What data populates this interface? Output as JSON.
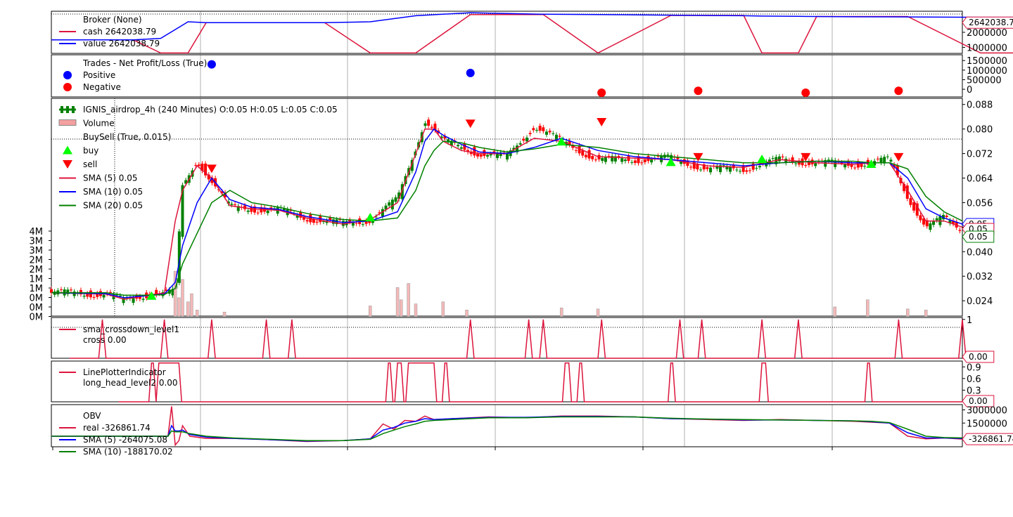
{
  "chart_data": [
    {
      "type": "line",
      "panel": "broker",
      "legend": [
        {
          "text": "Broker (None)",
          "color": ""
        },
        {
          "text": "cash 2642038.79",
          "color": "#dc143c"
        },
        {
          "text": "value 2642038.79",
          "color": "#0000ff"
        }
      ],
      "yticks": [
        "2000000",
        "1000000"
      ],
      "last_value": "2642038.79",
      "ylim": [
        600000,
        3400000
      ],
      "x": [
        0,
        45,
        60,
        75,
        85,
        100,
        120,
        140,
        150,
        175,
        200,
        230,
        270,
        300,
        340,
        380,
        390,
        410,
        420,
        440,
        470,
        510,
        540,
        580,
        620,
        640,
        660,
        700,
        740,
        790,
        830,
        870,
        880,
        900,
        940,
        980,
        1030,
        1070,
        1100,
        1130,
        1145,
        1200
      ],
      "series": [
        {
          "name": "cash",
          "color": "#dc143c",
          "values": [
            1500000,
            1500000,
            630000,
            630000,
            2642000,
            2642000,
            2642000,
            2642000,
            2642000,
            630000,
            630000,
            3180000,
            3180000,
            630000,
            3120000,
            3120000,
            630000,
            630000,
            3050000,
            3050000,
            3050000,
            630000,
            630000,
            3000000,
            3000000,
            630000,
            630000,
            2642000,
            2642000,
            2642000,
            2642000,
            2642000,
            2642000,
            2642000,
            2642000,
            2642000,
            2642000,
            2642000,
            2642000,
            2642000,
            2642000,
            2642038.79
          ]
        },
        {
          "name": "value",
          "color": "#0000ff",
          "values": [
            1500000,
            1500000,
            1600000,
            2700000,
            2642000,
            2642000,
            2642000,
            2642000,
            2642000,
            2700000,
            3100000,
            3300000,
            3200000,
            3180000,
            3140000,
            3100000,
            3080000,
            3060000,
            3050000,
            3030000,
            3020000,
            3000000,
            3000000,
            2980000,
            2960000,
            2900000,
            2800000,
            2700000,
            2680000,
            2660000,
            2650000,
            2645000,
            2643000,
            2642000,
            2642000,
            2642000,
            2642000,
            2642000,
            2642000,
            2642000,
            2642000,
            2642038.79
          ]
        }
      ]
    },
    {
      "type": "scatter",
      "panel": "trades",
      "legend": [
        {
          "text": "Trades - Net Profit/Loss (True)",
          "color": ""
        },
        {
          "text": "Positive",
          "color": "#0000ff"
        },
        {
          "text": "Negative",
          "color": "#ff0000"
        }
      ],
      "yticks": [
        "1500000",
        "1000000",
        "500000",
        "0"
      ],
      "ylim": [
        -400000,
        1800000
      ],
      "points": [
        {
          "x": 88,
          "y": 1300000,
          "sign": "positive"
        },
        {
          "x": 230,
          "y": 850000,
          "sign": "positive"
        },
        {
          "x": 302,
          "y": -180000,
          "sign": "negative"
        },
        {
          "x": 355,
          "y": -80000,
          "sign": "negative"
        },
        {
          "x": 414,
          "y": -180000,
          "sign": "negative"
        },
        {
          "x": 465,
          "y": -80000,
          "sign": "negative"
        }
      ]
    },
    {
      "type": "bar",
      "panel": "price",
      "legend": [
        {
          "text": "IGNIS_airdrop_4h (240 Minutes) O:0.05 H:0.05 L:0.05 C:0.05",
          "color": "#008000"
        },
        {
          "text": "Volume",
          "color": "#f4a0a0"
        },
        {
          "text": "BuySell (True, 0.015)",
          "color": ""
        },
        {
          "text": "buy",
          "color": "#00ff00"
        },
        {
          "text": "sell",
          "color": "#ff0000"
        },
        {
          "text": "SMA (5) 0.05",
          "color": "#dc143c"
        },
        {
          "text": "SMA (10) 0.05",
          "color": "#0000ff"
        },
        {
          "text": "SMA (20) 0.05",
          "color": "#008000"
        }
      ],
      "yticks": [
        "0.088",
        "0.080",
        "0.072",
        "0.064",
        "0.056",
        "0.048",
        "0.040",
        "0.032",
        "0.024"
      ],
      "volume_ticks": [
        "4M",
        "3M",
        "3M",
        "2M",
        "2M",
        "1M",
        "1M",
        "0M",
        "0M",
        "0M"
      ],
      "last_values": [
        "0.05",
        "0.05",
        "0.05"
      ],
      "ylim": [
        0.019,
        0.09
      ],
      "x": [
        0,
        30,
        40,
        55,
        62,
        68,
        72,
        80,
        88,
        98,
        110,
        125,
        140,
        160,
        175,
        190,
        200,
        205,
        210,
        215,
        225,
        235,
        250,
        265,
        280,
        300,
        320,
        340,
        360,
        380,
        400,
        420,
        440,
        450,
        460,
        470,
        480,
        490,
        500
      ],
      "close": [
        0.0266,
        0.0262,
        0.024,
        0.0265,
        0.0265,
        0.0268,
        0.061,
        0.07,
        0.063,
        0.0545,
        0.054,
        0.0535,
        0.051,
        0.049,
        0.0505,
        0.057,
        0.074,
        0.083,
        0.08,
        0.076,
        0.074,
        0.072,
        0.071,
        0.081,
        0.076,
        0.07,
        0.07,
        0.0705,
        0.067,
        0.067,
        0.07,
        0.069,
        0.0685,
        0.069,
        0.07,
        0.058,
        0.048,
        0.051,
        0.047
      ],
      "series": [
        {
          "name": "SMA (5)",
          "color": "#dc143c",
          "values": [
            0.0266,
            0.0262,
            0.0245,
            0.026,
            0.0265,
            0.05,
            0.06,
            0.068,
            0.064,
            0.055,
            0.054,
            0.0535,
            0.051,
            0.049,
            0.0505,
            0.056,
            0.072,
            0.08,
            0.08,
            0.076,
            0.073,
            0.072,
            0.072,
            0.077,
            0.076,
            0.071,
            0.0705,
            0.07,
            0.068,
            0.0675,
            0.07,
            0.069,
            0.0685,
            0.069,
            0.069,
            0.06,
            0.05,
            0.05,
            0.048
          ]
        },
        {
          "name": "SMA (10)",
          "color": "#0000ff",
          "values": [
            0.0266,
            0.0263,
            0.025,
            0.0258,
            0.0262,
            0.03,
            0.042,
            0.056,
            0.064,
            0.057,
            0.0545,
            0.0538,
            0.0515,
            0.0495,
            0.05,
            0.053,
            0.066,
            0.076,
            0.08,
            0.078,
            0.075,
            0.0725,
            0.072,
            0.074,
            0.077,
            0.073,
            0.071,
            0.07,
            0.069,
            0.068,
            0.069,
            0.0695,
            0.069,
            0.069,
            0.069,
            0.064,
            0.054,
            0.051,
            0.049
          ]
        },
        {
          "name": "SMA (20)",
          "color": "#008000",
          "values": [
            0.0266,
            0.0266,
            0.0258,
            0.0258,
            0.026,
            0.028,
            0.036,
            0.046,
            0.056,
            0.06,
            0.056,
            0.0545,
            0.0525,
            0.0505,
            0.05,
            0.051,
            0.06,
            0.068,
            0.073,
            0.076,
            0.0755,
            0.074,
            0.0725,
            0.0735,
            0.075,
            0.074,
            0.072,
            0.071,
            0.07,
            0.069,
            0.069,
            0.0695,
            0.0695,
            0.069,
            0.069,
            0.067,
            0.058,
            0.053,
            0.05
          ]
        }
      ],
      "buy": [
        {
          "x": 55,
          "y": 0.0257
        },
        {
          "x": 175,
          "y": 0.0513
        },
        {
          "x": 280,
          "y": 0.076
        },
        {
          "x": 340,
          "y": 0.0693
        },
        {
          "x": 390,
          "y": 0.0703
        },
        {
          "x": 450,
          "y": 0.0687
        }
      ],
      "sell": [
        {
          "x": 88,
          "y": 0.067
        },
        {
          "x": 230,
          "y": 0.0817
        },
        {
          "x": 302,
          "y": 0.0822
        },
        {
          "x": 355,
          "y": 0.0708
        },
        {
          "x": 414,
          "y": 0.0708
        },
        {
          "x": 465,
          "y": 0.0708
        }
      ],
      "volume_ylim": [
        0,
        4300000
      ],
      "volume": [
        {
          "x": 68,
          "v": 2200000
        },
        {
          "x": 70,
          "v": 900000
        },
        {
          "x": 72,
          "v": 1800000
        },
        {
          "x": 75,
          "v": 700000
        },
        {
          "x": 77,
          "v": 1100000
        },
        {
          "x": 80,
          "v": 300000
        },
        {
          "x": 95,
          "v": 200000
        },
        {
          "x": 175,
          "v": 500000
        },
        {
          "x": 190,
          "v": 1400000
        },
        {
          "x": 192,
          "v": 800000
        },
        {
          "x": 196,
          "v": 1600000
        },
        {
          "x": 200,
          "v": 600000
        },
        {
          "x": 215,
          "v": 700000
        },
        {
          "x": 228,
          "v": 300000
        },
        {
          "x": 280,
          "v": 400000
        },
        {
          "x": 300,
          "v": 350000
        },
        {
          "x": 430,
          "v": 450000
        },
        {
          "x": 448,
          "v": 800000
        },
        {
          "x": 470,
          "v": 350000
        },
        {
          "x": 480,
          "v": 300000
        }
      ]
    },
    {
      "type": "line",
      "panel": "crossdown",
      "legend": [
        {
          "text": "sma_crossdown_level1",
          "color": "#dc143c"
        },
        {
          "text": "cross 0.00",
          "color": ""
        }
      ],
      "yticks": [
        "1"
      ],
      "last_value": "0.00",
      "ylim": [
        0,
        1.05
      ],
      "spikes": [
        28,
        62,
        88,
        118,
        132,
        230,
        262,
        270,
        302,
        345,
        357,
        390,
        410,
        465,
        500
      ]
    },
    {
      "type": "line",
      "panel": "lineplotter",
      "legend": [
        {
          "text": "LinePlotterIndicator",
          "color": "#dc143c"
        },
        {
          "text": "long_head_level2 0.00",
          "color": ""
        }
      ],
      "yticks": [
        "0.9",
        "0.6",
        "0.3"
      ],
      "last_value": "0.00",
      "ylim": [
        0,
        1.05
      ],
      "pulses": [
        [
          55,
          56
        ],
        [
          59,
          70
        ],
        [
          185,
          186
        ],
        [
          190,
          192
        ],
        [
          196,
          210
        ],
        [
          216,
          217
        ],
        [
          282,
          284
        ],
        [
          290,
          291
        ],
        [
          340,
          341
        ],
        [
          390,
          392
        ],
        [
          448,
          449
        ]
      ]
    },
    {
      "type": "line",
      "panel": "obv",
      "legend": [
        {
          "text": "OBV",
          "color": ""
        },
        {
          "text": "real -326861.74",
          "color": "#dc143c"
        },
        {
          "text": "SMA (5) -264075.08",
          "color": "#0000ff"
        },
        {
          "text": "SMA (10) -188170.02",
          "color": "#008000"
        }
      ],
      "yticks": [
        "3000000",
        "1500000"
      ],
      "last_value": "-326861.74",
      "ylim": [
        -1200000,
        3600000
      ],
      "x": [
        0,
        50,
        64,
        66,
        68,
        70,
        72,
        76,
        85,
        100,
        120,
        140,
        160,
        175,
        182,
        188,
        194,
        200,
        205,
        210,
        220,
        240,
        260,
        280,
        300,
        320,
        340,
        360,
        380,
        400,
        420,
        440,
        450,
        460,
        470,
        480,
        490,
        500
      ],
      "series": [
        {
          "name": "real",
          "color": "#dc143c",
          "values": [
            0,
            0,
            0,
            3400000,
            -1000000,
            -500000,
            1200000,
            0,
            -250000,
            -250000,
            -400000,
            -600000,
            -500000,
            -300000,
            1400000,
            800000,
            1800000,
            1700000,
            2300000,
            1900000,
            2000000,
            2200000,
            2100000,
            2300000,
            2300000,
            2200000,
            2000000,
            1900000,
            1800000,
            1900000,
            1800000,
            1700000,
            1600000,
            1500000,
            0,
            -300000,
            -200000,
            -326861.74
          ]
        },
        {
          "name": "SMA (5)",
          "color": "#0000ff",
          "values": [
            0,
            0,
            0,
            1200000,
            600000,
            600000,
            700000,
            200000,
            -100000,
            -250000,
            -400000,
            -550000,
            -500000,
            -300000,
            700000,
            1000000,
            1500000,
            1700000,
            2000000,
            1900000,
            2000000,
            2150000,
            2150000,
            2250000,
            2250000,
            2200000,
            2000000,
            1950000,
            1850000,
            1850000,
            1800000,
            1750000,
            1650000,
            1500000,
            400000,
            -200000,
            -200000,
            -264075.08
          ]
        },
        {
          "name": "SMA (10)",
          "color": "#008000",
          "values": [
            0,
            0,
            0,
            600000,
            500000,
            500000,
            500000,
            300000,
            0,
            -200000,
            -350000,
            -500000,
            -500000,
            -350000,
            300000,
            700000,
            1100000,
            1400000,
            1700000,
            1800000,
            1900000,
            2100000,
            2100000,
            2200000,
            2200000,
            2200000,
            2050000,
            1950000,
            1900000,
            1850000,
            1800000,
            1750000,
            1700000,
            1550000,
            800000,
            0,
            -150000,
            -188170.02
          ]
        }
      ]
    }
  ]
}
